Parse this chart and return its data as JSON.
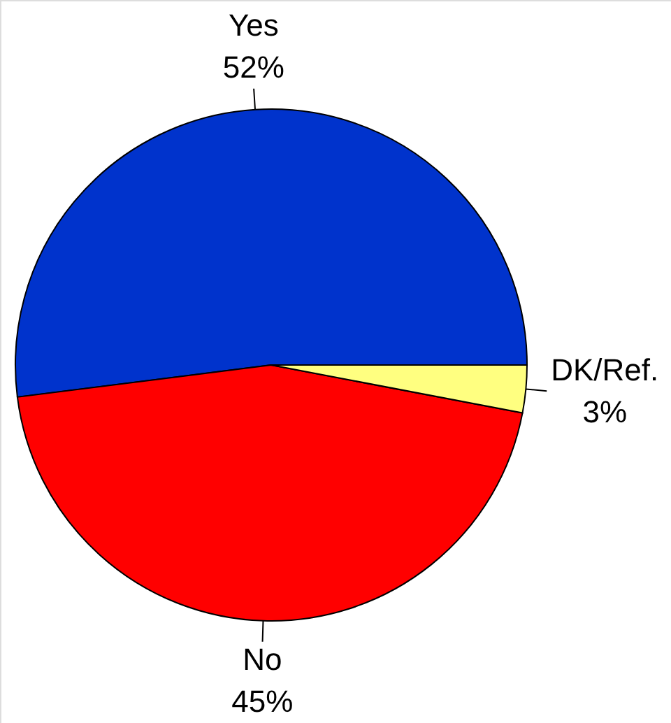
{
  "chart_data": {
    "type": "pie",
    "categories": [
      "Yes",
      "No",
      "DK/Ref."
    ],
    "values": [
      52,
      45,
      3
    ],
    "colors": [
      "#0033cc",
      "#ff0000",
      "#ffff80"
    ],
    "value_labels": [
      "52%",
      "45%",
      "3%"
    ]
  }
}
